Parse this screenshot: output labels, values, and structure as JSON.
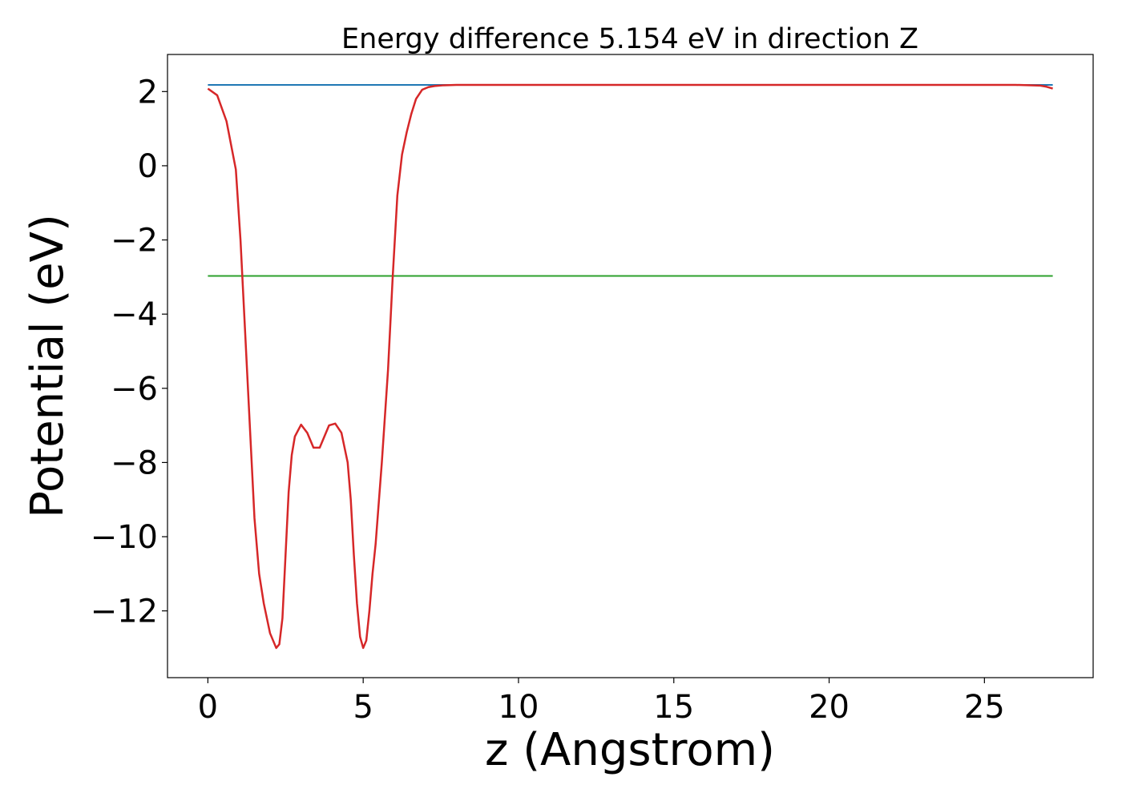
{
  "chart_data": {
    "type": "line",
    "title": "Energy difference 5.154 eV in direction Z",
    "xlabel": "z (Angstrom)",
    "ylabel": "Potential (eV)",
    "xlim": [
      -1.3,
      28.5
    ],
    "ylim": [
      -13.8,
      3.0
    ],
    "x_ticks": [
      0,
      5,
      10,
      15,
      20,
      25
    ],
    "x_tick_labels": [
      "0",
      "5",
      "10",
      "15",
      "20",
      "25"
    ],
    "y_ticks": [
      2,
      0,
      -2,
      -4,
      -6,
      -8,
      -10,
      -12
    ],
    "y_tick_labels": [
      "2",
      "0",
      "−2",
      "−4",
      "−6",
      "−8",
      "−10",
      "−12"
    ],
    "grid": false,
    "legend": "none",
    "series": [
      {
        "color": "#1f77b4",
        "x": [
          0,
          27.2
        ],
        "y": [
          2.18,
          2.18
        ]
      },
      {
        "color": "#2ca02c",
        "x": [
          0,
          27.2
        ],
        "y": [
          -2.97,
          -2.97
        ]
      },
      {
        "color": "#d62728",
        "x": [
          0,
          0.3,
          0.6,
          0.9,
          1.05,
          1.2,
          1.35,
          1.5,
          1.65,
          1.8,
          2.0,
          2.2,
          2.3,
          2.4,
          2.5,
          2.6,
          2.7,
          2.8,
          3.0,
          3.2,
          3.4,
          3.6,
          3.75,
          3.9,
          4.1,
          4.3,
          4.5,
          4.6,
          4.7,
          4.8,
          4.9,
          5.0,
          5.1,
          5.2,
          5.3,
          5.4,
          5.6,
          5.8,
          5.95,
          6.1,
          6.25,
          6.4,
          6.55,
          6.7,
          6.9,
          7.1,
          7.3,
          7.6,
          8.0,
          8.5,
          9.0,
          10.0,
          12.0,
          15.0,
          20.0,
          25.0,
          26.0,
          26.5,
          26.8,
          27.0,
          27.2
        ],
        "y": [
          2.08,
          1.9,
          1.2,
          -0.1,
          -2.0,
          -4.5,
          -7.0,
          -9.5,
          -11.0,
          -11.8,
          -12.6,
          -13.0,
          -12.9,
          -12.2,
          -10.5,
          -8.8,
          -7.8,
          -7.3,
          -6.98,
          -7.2,
          -7.6,
          -7.6,
          -7.3,
          -7.0,
          -6.95,
          -7.2,
          -8.0,
          -9.0,
          -10.5,
          -11.8,
          -12.7,
          -13.0,
          -12.8,
          -12.0,
          -11.0,
          -10.2,
          -8.0,
          -5.5,
          -3.0,
          -0.8,
          0.3,
          0.9,
          1.4,
          1.8,
          2.05,
          2.12,
          2.15,
          2.17,
          2.18,
          2.18,
          2.18,
          2.18,
          2.18,
          2.18,
          2.18,
          2.18,
          2.18,
          2.17,
          2.16,
          2.13,
          2.08
        ]
      }
    ]
  }
}
